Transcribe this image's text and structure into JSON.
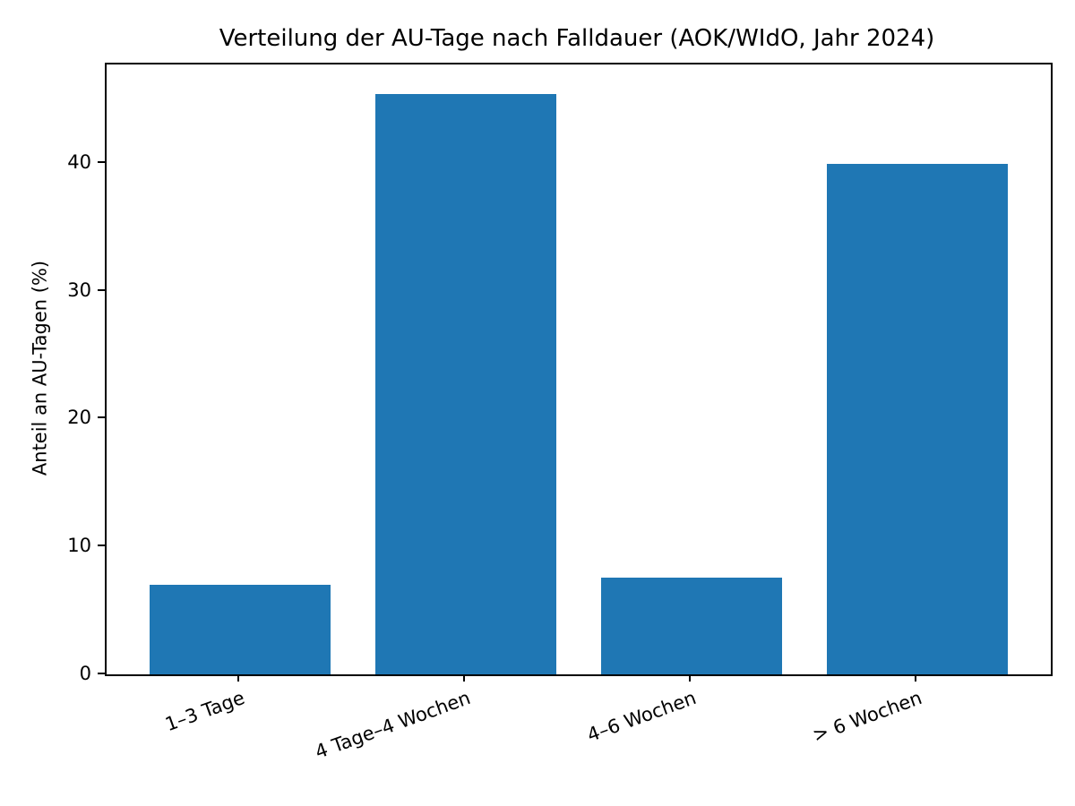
{
  "chart_data": {
    "type": "bar",
    "title": "Verteilung der AU-Tage nach Falldauer (AOK/WIdO, Jahr 2024)",
    "categories": [
      "1–3 Tage",
      "4 Tage–4 Wochen",
      "4–6 Wochen",
      "> 6 Wochen"
    ],
    "values": [
      7.0,
      45.4,
      7.6,
      39.9
    ],
    "xlabel": "",
    "ylabel": "Anteil an AU-Tagen (%)",
    "ylim": [
      0,
      47.7
    ],
    "yticks": [
      0,
      10,
      20,
      30,
      40
    ],
    "xtick_rotation_deg": 20,
    "bar_color": "#1f77b4",
    "axis_color": "#000000",
    "background_color": "#ffffff",
    "grid": false,
    "legend": "none"
  }
}
